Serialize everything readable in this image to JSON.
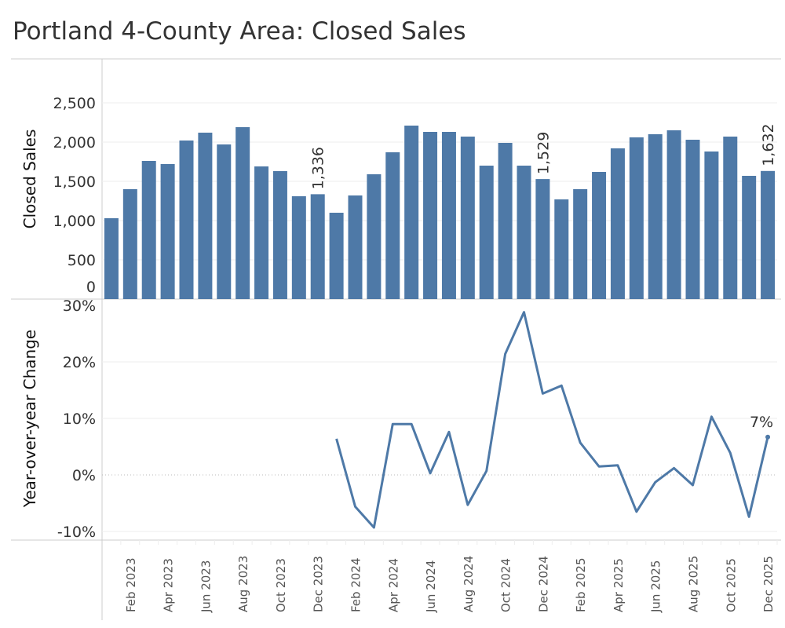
{
  "title": "Portland 4-County Area: Closed Sales",
  "chart_data": [
    {
      "type": "bar",
      "ylabel": "Closed Sales",
      "ylim": [
        0,
        2800
      ],
      "yticks": [
        "0",
        "500",
        "1,000",
        "1,500",
        "2,000",
        "2,500"
      ],
      "grid": true,
      "color": "#4e79a7",
      "categories": [
        "Jan 2023",
        "Feb 2023",
        "Mar 2023",
        "Apr 2023",
        "May 2023",
        "Jun 2023",
        "Jul 2023",
        "Aug 2023",
        "Sep 2023",
        "Oct 2023",
        "Nov 2023",
        "Dec 2023",
        "Jan 2024",
        "Feb 2024",
        "Mar 2024",
        "Apr 2024",
        "May 2024",
        "Jun 2024",
        "Jul 2024",
        "Aug 2024",
        "Sep 2024",
        "Oct 2024",
        "Nov 2024",
        "Dec 2024",
        "Jan 2025",
        "Feb 2025",
        "Mar 2025",
        "Apr 2025",
        "May 2025",
        "Jun 2025",
        "Jul 2025",
        "Aug 2025",
        "Sep 2025",
        "Oct 2025",
        "Nov 2025",
        "Dec 2025"
      ],
      "values": [
        1030,
        1400,
        1760,
        1720,
        2020,
        2120,
        1970,
        2190,
        1690,
        1630,
        1310,
        1336,
        1100,
        1320,
        1590,
        1870,
        2210,
        2130,
        2130,
        2070,
        1700,
        1990,
        1700,
        1529,
        1270,
        1400,
        1620,
        1920,
        2060,
        2100,
        2150,
        2030,
        1880,
        2070,
        1570,
        1632
      ],
      "data_labels": [
        {
          "category": "Dec 2023",
          "text": "1,336"
        },
        {
          "category": "Dec 2024",
          "text": "1,529"
        },
        {
          "category": "Dec 2025",
          "text": "1,632"
        }
      ]
    },
    {
      "type": "line",
      "ylabel": "Year-over-year Change",
      "ylim": [
        -11,
        31
      ],
      "yticks": [
        "-10%",
        "0%",
        "10%",
        "20%",
        "30%"
      ],
      "grid": true,
      "color": "#4e79a7",
      "x": [
        "Jan 2024",
        "Feb 2024",
        "Mar 2024",
        "Apr 2024",
        "May 2024",
        "Jun 2024",
        "Jul 2024",
        "Aug 2024",
        "Sep 2024",
        "Oct 2024",
        "Nov 2024",
        "Dec 2024",
        "Jan 2025",
        "Feb 2025",
        "Mar 2025",
        "Apr 2025",
        "May 2025",
        "Jun 2025",
        "Jul 2025",
        "Aug 2025",
        "Sep 2025",
        "Oct 2025",
        "Nov 2025",
        "Dec 2025"
      ],
      "values": [
        6.4,
        -5.6,
        -9.3,
        9.0,
        9.0,
        0.3,
        7.6,
        -5.3,
        0.7,
        21.4,
        28.8,
        14.4,
        15.8,
        5.7,
        1.5,
        1.7,
        -6.5,
        -1.3,
        1.2,
        -1.8,
        10.3,
        3.9,
        -7.4,
        6.7
      ],
      "data_labels": [
        {
          "x": "Dec 2025",
          "text": "7%"
        }
      ]
    }
  ],
  "x_tick_labels": [
    "Feb 2023",
    "Apr 2023",
    "Jun 2023",
    "Aug 2023",
    "Oct 2023",
    "Dec 2023",
    "Feb 2024",
    "Apr 2024",
    "Jun 2024",
    "Aug 2024",
    "Oct 2024",
    "Dec 2024",
    "Feb 2025",
    "Apr 2025",
    "Jun 2025",
    "Aug 2025",
    "Oct 2025",
    "Dec 2025"
  ]
}
